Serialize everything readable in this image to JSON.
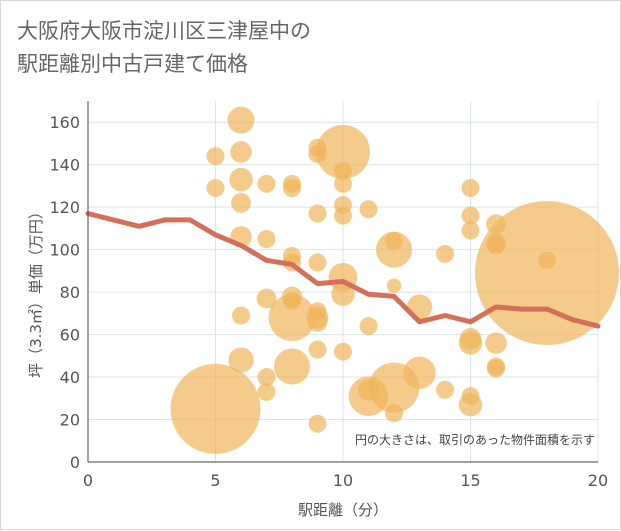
{
  "chart_data": {
    "type": "scatter",
    "title_line1": "大阪府大阪市淀川区三津屋中の",
    "title_line2": "駅距離別中古戸建て価格",
    "xlabel": "駅距離（分）",
    "ylabel": "坪（3.3㎡）単価（万円）",
    "xlim": [
      0,
      20
    ],
    "ylim": [
      0,
      170
    ],
    "x_ticks": [
      "0",
      "5",
      "10",
      "15",
      "20"
    ],
    "y_ticks": [
      "0",
      "20",
      "40",
      "60",
      "80",
      "100",
      "120",
      "140",
      "160"
    ],
    "note": "円の大きさは、取引のあった物件面積を示す",
    "grid": true,
    "bubble_color": "#f0b55a",
    "line_color": "#d4705a",
    "bubbles": [
      {
        "x": 5,
        "y": 144,
        "s": 1
      },
      {
        "x": 5,
        "y": 129,
        "s": 1
      },
      {
        "x": 5,
        "y": 25,
        "s": 5
      },
      {
        "x": 6,
        "y": 161,
        "s": 1.5
      },
      {
        "x": 6,
        "y": 146,
        "s": 1.2
      },
      {
        "x": 6,
        "y": 133,
        "s": 1.3
      },
      {
        "x": 6,
        "y": 122,
        "s": 1.1
      },
      {
        "x": 6,
        "y": 106,
        "s": 1.2
      },
      {
        "x": 6,
        "y": 69,
        "s": 1
      },
      {
        "x": 6,
        "y": 48,
        "s": 1.4
      },
      {
        "x": 7,
        "y": 131,
        "s": 1
      },
      {
        "x": 7,
        "y": 105,
        "s": 1
      },
      {
        "x": 7,
        "y": 77,
        "s": 1.1
      },
      {
        "x": 7,
        "y": 40,
        "s": 1
      },
      {
        "x": 7,
        "y": 33,
        "s": 1
      },
      {
        "x": 8,
        "y": 131,
        "s": 1
      },
      {
        "x": 8,
        "y": 129,
        "s": 1
      },
      {
        "x": 8,
        "y": 97,
        "s": 1
      },
      {
        "x": 8,
        "y": 94,
        "s": 1
      },
      {
        "x": 8,
        "y": 78,
        "s": 1.1
      },
      {
        "x": 8,
        "y": 76,
        "s": 1
      },
      {
        "x": 8,
        "y": 68,
        "s": 2.6
      },
      {
        "x": 8,
        "y": 45,
        "s": 2
      },
      {
        "x": 9,
        "y": 148,
        "s": 1
      },
      {
        "x": 9,
        "y": 145,
        "s": 1
      },
      {
        "x": 9,
        "y": 117,
        "s": 1
      },
      {
        "x": 9,
        "y": 94,
        "s": 1
      },
      {
        "x": 9,
        "y": 71,
        "s": 1
      },
      {
        "x": 9,
        "y": 68,
        "s": 1.2
      },
      {
        "x": 9,
        "y": 66,
        "s": 1.1
      },
      {
        "x": 9,
        "y": 53,
        "s": 1
      },
      {
        "x": 9,
        "y": 18,
        "s": 1
      },
      {
        "x": 10,
        "y": 146,
        "s": 3
      },
      {
        "x": 10,
        "y": 137,
        "s": 1
      },
      {
        "x": 10,
        "y": 131,
        "s": 1
      },
      {
        "x": 10,
        "y": 121,
        "s": 1
      },
      {
        "x": 10,
        "y": 116,
        "s": 1
      },
      {
        "x": 10,
        "y": 87,
        "s": 1.6
      },
      {
        "x": 10,
        "y": 79,
        "s": 1.3
      },
      {
        "x": 10,
        "y": 52,
        "s": 1
      },
      {
        "x": 11,
        "y": 119,
        "s": 1
      },
      {
        "x": 11,
        "y": 64,
        "s": 1
      },
      {
        "x": 11,
        "y": 34,
        "s": 1.2
      },
      {
        "x": 11,
        "y": 31,
        "s": 2.2
      },
      {
        "x": 12,
        "y": 104,
        "s": 1
      },
      {
        "x": 12,
        "y": 100,
        "s": 2
      },
      {
        "x": 12,
        "y": 83,
        "s": 0.8
      },
      {
        "x": 12,
        "y": 35,
        "s": 2.8
      },
      {
        "x": 12,
        "y": 23,
        "s": 1
      },
      {
        "x": 13,
        "y": 73,
        "s": 1.4
      },
      {
        "x": 13,
        "y": 42,
        "s": 1.8
      },
      {
        "x": 14,
        "y": 98,
        "s": 1
      },
      {
        "x": 14,
        "y": 34,
        "s": 1
      },
      {
        "x": 15,
        "y": 129,
        "s": 1
      },
      {
        "x": 15,
        "y": 116,
        "s": 1
      },
      {
        "x": 15,
        "y": 109,
        "s": 1
      },
      {
        "x": 15,
        "y": 58,
        "s": 1.2
      },
      {
        "x": 15,
        "y": 56,
        "s": 1.3
      },
      {
        "x": 15,
        "y": 31,
        "s": 1
      },
      {
        "x": 15,
        "y": 27,
        "s": 1.3
      },
      {
        "x": 16,
        "y": 112,
        "s": 1.1
      },
      {
        "x": 16,
        "y": 103,
        "s": 1.1
      },
      {
        "x": 16,
        "y": 102,
        "s": 1
      },
      {
        "x": 16,
        "y": 56,
        "s": 1.2
      },
      {
        "x": 16,
        "y": 45,
        "s": 1
      },
      {
        "x": 16,
        "y": 44,
        "s": 1
      },
      {
        "x": 18,
        "y": 89,
        "s": 8
      },
      {
        "x": 18,
        "y": 95,
        "s": 1
      }
    ],
    "series": [
      {
        "type": "line",
        "x": [
          0,
          1,
          2,
          3,
          4,
          5,
          6,
          7,
          8,
          9,
          10,
          11,
          12,
          13,
          14,
          15,
          16,
          17,
          18,
          19,
          20
        ],
        "values": [
          117,
          114,
          111,
          114,
          114,
          107,
          102,
          95,
          93,
          84,
          85,
          79,
          78,
          66,
          69,
          66,
          73,
          72,
          72,
          67,
          64
        ]
      }
    ]
  }
}
